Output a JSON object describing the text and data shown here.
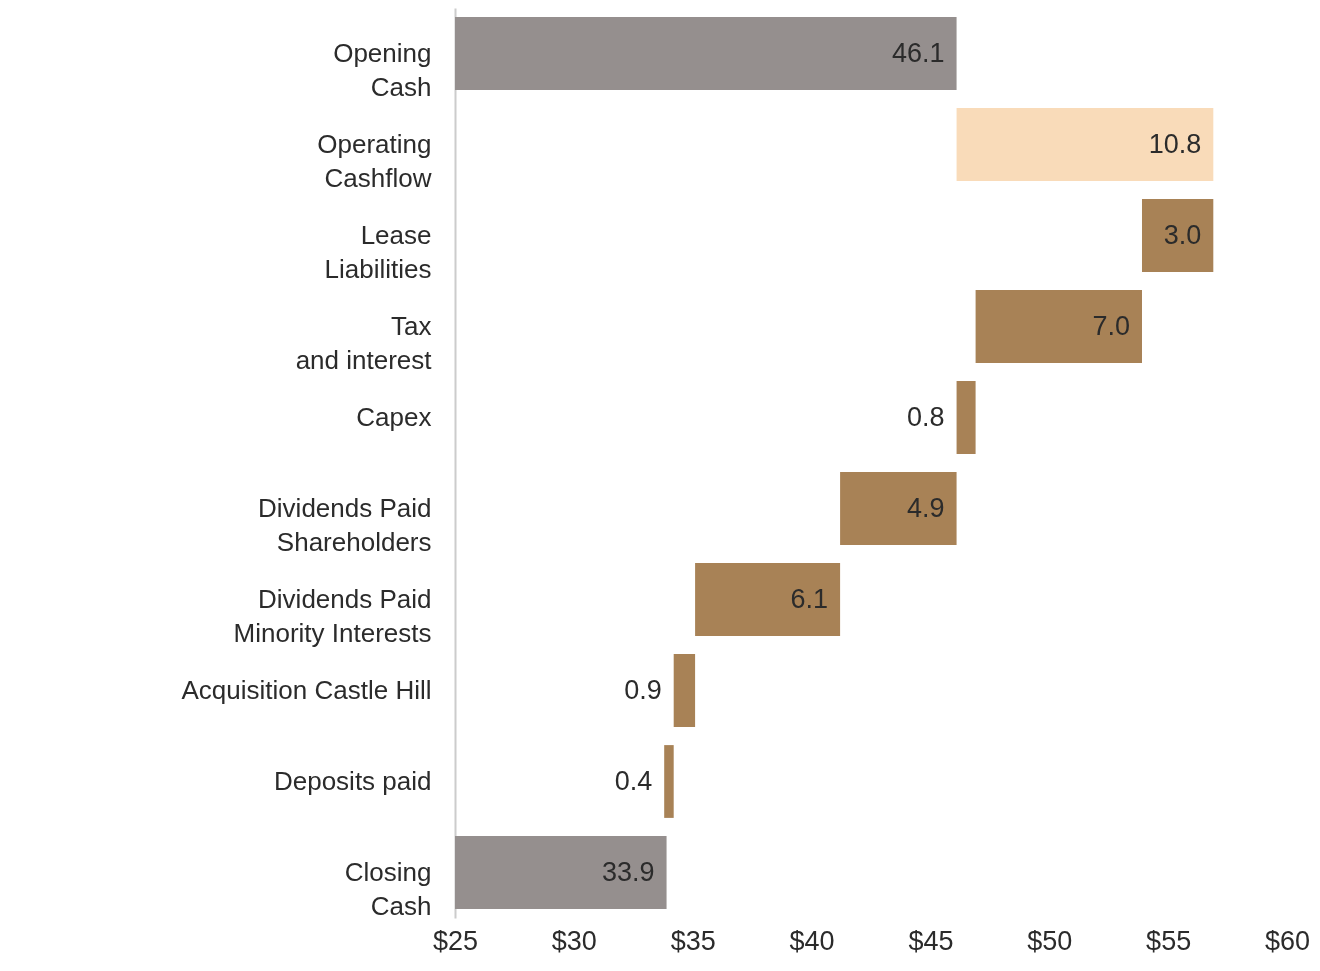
{
  "chart_data": {
    "type": "bar",
    "orientation": "horizontal",
    "categories": [
      "Opening\nCash",
      "Operating\nCashflow",
      "Lease\nLiabilities",
      "Tax\nand interest",
      "Capex",
      "Dividends Paid\nShareholders",
      "Dividends Paid\nMinority Interests",
      "Acquisition Castle Hill",
      "Deposits paid",
      "Closing\nCash"
    ],
    "values": [
      46.1,
      10.8,
      -3.0,
      -7.0,
      -0.8,
      -4.9,
      -6.1,
      -0.9,
      -0.4,
      33.9
    ],
    "base": [
      null,
      46.1,
      56.9,
      53.9,
      46.9,
      46.1,
      41.2,
      35.1,
      34.2,
      null
    ],
    "colors": [
      "#958f8e",
      "#f9dbb9",
      "#a88256",
      "#a88256",
      "#a88256",
      "#a88256",
      "#a88256",
      "#a88256",
      "#a88256",
      "#958f8e"
    ],
    "value_labels": [
      "46.1",
      "10.8",
      "3.0",
      "7.0",
      "0.8",
      "4.9",
      "6.1",
      "0.9",
      "0.4",
      "33.9"
    ],
    "xlim": [
      25,
      60
    ],
    "xticks": [
      {
        "value": 25,
        "label": "$25"
      },
      {
        "value": 30,
        "label": "$30"
      },
      {
        "value": 35,
        "label": "$35"
      },
      {
        "value": 40,
        "label": "$40"
      },
      {
        "value": 45,
        "label": "$45"
      },
      {
        "value": 50,
        "label": "$50"
      },
      {
        "value": 55,
        "label": "$55"
      },
      {
        "value": 60,
        "label": "$60"
      }
    ],
    "grid": false
  }
}
